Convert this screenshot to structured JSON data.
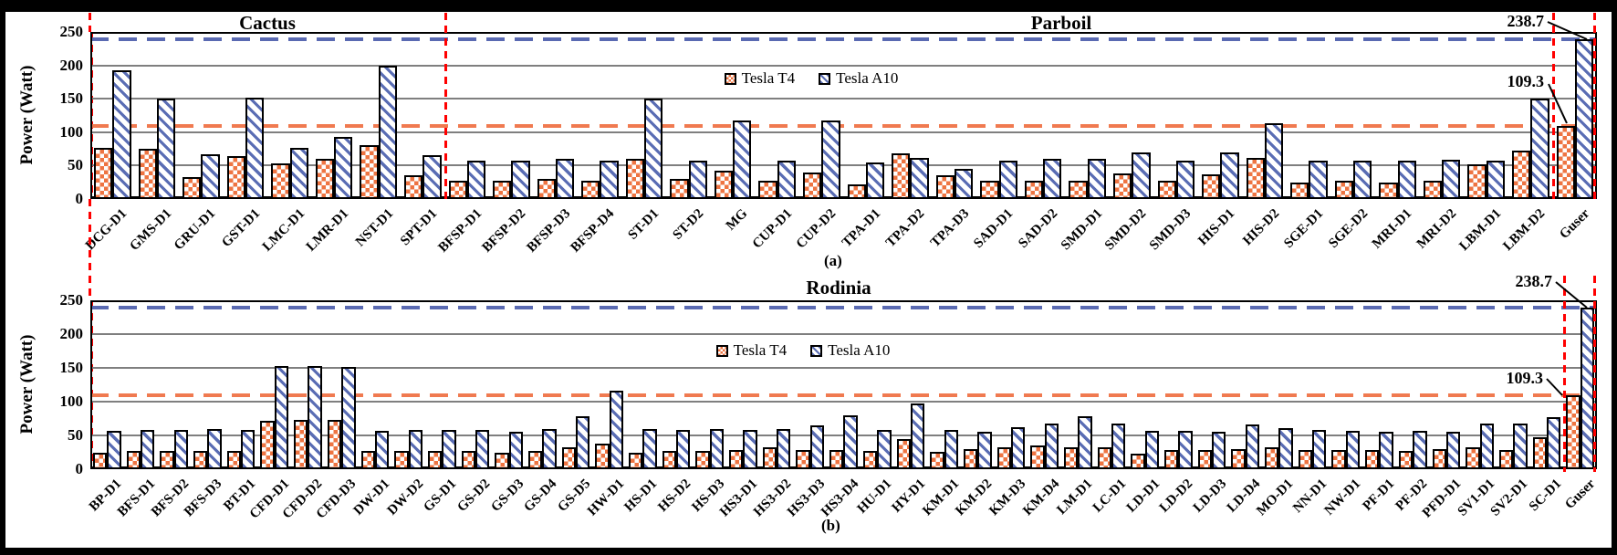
{
  "figure": {
    "ylabel": "Power (Watt)",
    "legend": [
      {
        "name": "Tesla T4",
        "swatch": "orange-checker-swatch-icon"
      },
      {
        "name": "Tesla A10",
        "swatch": "blue-stripe-swatch-icon"
      }
    ],
    "panel_labels": {
      "a": "(a)",
      "b": "(b)"
    },
    "colors": {
      "t4_fill": "#EE7442",
      "a10_fill": "#5A6DB4",
      "t4_hline": "#F07A50",
      "a10_hline": "#5A6AB2",
      "red_divider": "#FF0000",
      "grid": "#7F7F7F",
      "bar_border": "#000000"
    }
  },
  "chart_data": [
    {
      "id": "a",
      "type": "bar",
      "ylabel": "Power (Watt)",
      "ylim": [
        0,
        250
      ],
      "yticks": [
        0,
        50,
        100,
        150,
        200,
        250
      ],
      "sections": [
        {
          "label": "Cactus",
          "span": [
            0,
            8
          ]
        },
        {
          "label": "Parboil",
          "span": [
            8,
            33
          ]
        }
      ],
      "hlines": [
        {
          "label": "238.7",
          "value": 238.7,
          "series": "Tesla A10"
        },
        {
          "label": "109.3",
          "value": 109.3,
          "series": "Tesla T4"
        }
      ],
      "annotations": [
        {
          "text": "238.7",
          "points_to": "Guser Tesla A10 bar"
        },
        {
          "text": "109.3",
          "points_to": "Guser Tesla T4 bar"
        }
      ],
      "red_divider_boundaries": [
        0,
        8,
        33,
        34
      ],
      "categories": [
        "DCG-D1",
        "GMS-D1",
        "GRU-D1",
        "GST-D1",
        "LMC-D1",
        "LMR-D1",
        "NST-D1",
        "SPT-D1",
        "BFSP-D1",
        "BFSP-D2",
        "BFSP-D3",
        "BFSP-D4",
        "ST-D1",
        "ST-D2",
        "MG",
        "CUP-D1",
        "CUP-D2",
        "TPA-D1",
        "TPA-D2",
        "TPA-D3",
        "SAD-D1",
        "SAD-D2",
        "SMD-D1",
        "SMD-D2",
        "SMD-D3",
        "HIS-D1",
        "HIS-D2",
        "SGE-D1",
        "SGE-D2",
        "MRI-D1",
        "MRI-D2",
        "LBM-D1",
        "LBM-D2",
        "Guser"
      ],
      "series": [
        {
          "name": "Tesla T4",
          "values": [
            77,
            75,
            33,
            64,
            53,
            60,
            81,
            36,
            28,
            28,
            30,
            28,
            60,
            30,
            42,
            28,
            40,
            22,
            68,
            35,
            28,
            28,
            28,
            38,
            28,
            37,
            62,
            25,
            27,
            25,
            28,
            52,
            72,
            109.3
          ]
        },
        {
          "name": "Tesla A10",
          "values": [
            193,
            150,
            67,
            151,
            77,
            93,
            200,
            66,
            58,
            58,
            60,
            58,
            150,
            57,
            117,
            58,
            117,
            54,
            62,
            45,
            58,
            60,
            60,
            70,
            57,
            70,
            113,
            58,
            58,
            57,
            59,
            58,
            150,
            238.7
          ]
        }
      ]
    },
    {
      "id": "b",
      "type": "bar",
      "ylabel": "Power (Watt)",
      "ylim": [
        0,
        250
      ],
      "yticks": [
        0,
        50,
        100,
        150,
        200,
        250
      ],
      "sections": [
        {
          "label": "Rodinia",
          "span": [
            0,
            44
          ]
        }
      ],
      "hlines": [
        {
          "label": "238.7",
          "value": 238.7,
          "series": "Tesla A10"
        },
        {
          "label": "109.3",
          "value": 109.3,
          "series": "Tesla T4"
        }
      ],
      "annotations": [
        {
          "text": "238.7",
          "points_to": "Guser Tesla A10 bar"
        },
        {
          "text": "109.3",
          "points_to": "Guser Tesla T4 bar"
        }
      ],
      "red_divider_boundaries": [
        0,
        44,
        45
      ],
      "categories": [
        "BP-D1",
        "BFS-D1",
        "BFS-D2",
        "BFS-D3",
        "BT-D1",
        "CFD-D1",
        "CFD-D2",
        "CFD-D3",
        "DW-D1",
        "DW-D2",
        "GS-D1",
        "GS-D2",
        "GS-D3",
        "GS-D4",
        "GS-D5",
        "HW-D1",
        "HS-D1",
        "HS-D2",
        "HS-D3",
        "HS3-D1",
        "HS3-D2",
        "HS3-D3",
        "HS3-D4",
        "HU-D1",
        "HY-D1",
        "KM-D1",
        "KM-D2",
        "KM-D3",
        "KM-D4",
        "LM-D1",
        "LC-D1",
        "LD-D1",
        "LD-D2",
        "LD-D3",
        "LD-D4",
        "MO-D1",
        "NN-D1",
        "NW-D1",
        "PF-D1",
        "PF-D2",
        "PFD-D1",
        "SV1-D1",
        "SV2-D1",
        "SC-D1",
        "Guser"
      ],
      "series": [
        {
          "name": "Tesla T4",
          "values": [
            25,
            27,
            27,
            27,
            27,
            71,
            73,
            73,
            27,
            27,
            27,
            27,
            24,
            27,
            32,
            38,
            24,
            27,
            27,
            28,
            33,
            28,
            28,
            27,
            44,
            26,
            30,
            32,
            35,
            33,
            33,
            23,
            28,
            28,
            30,
            33,
            28,
            28,
            28,
            27,
            30,
            32,
            29,
            47,
            109.3
          ]
        },
        {
          "name": "Tesla A10",
          "values": [
            57,
            58,
            58,
            60,
            58,
            153,
            153,
            152,
            57,
            58,
            58,
            58,
            56,
            59,
            78,
            116,
            59,
            58,
            59,
            58,
            59,
            65,
            80,
            58,
            97,
            58,
            56,
            62,
            68,
            79,
            67,
            57,
            57,
            55,
            66,
            61,
            58,
            57,
            55,
            57,
            55,
            67,
            68,
            77,
            238.7
          ]
        }
      ]
    }
  ]
}
